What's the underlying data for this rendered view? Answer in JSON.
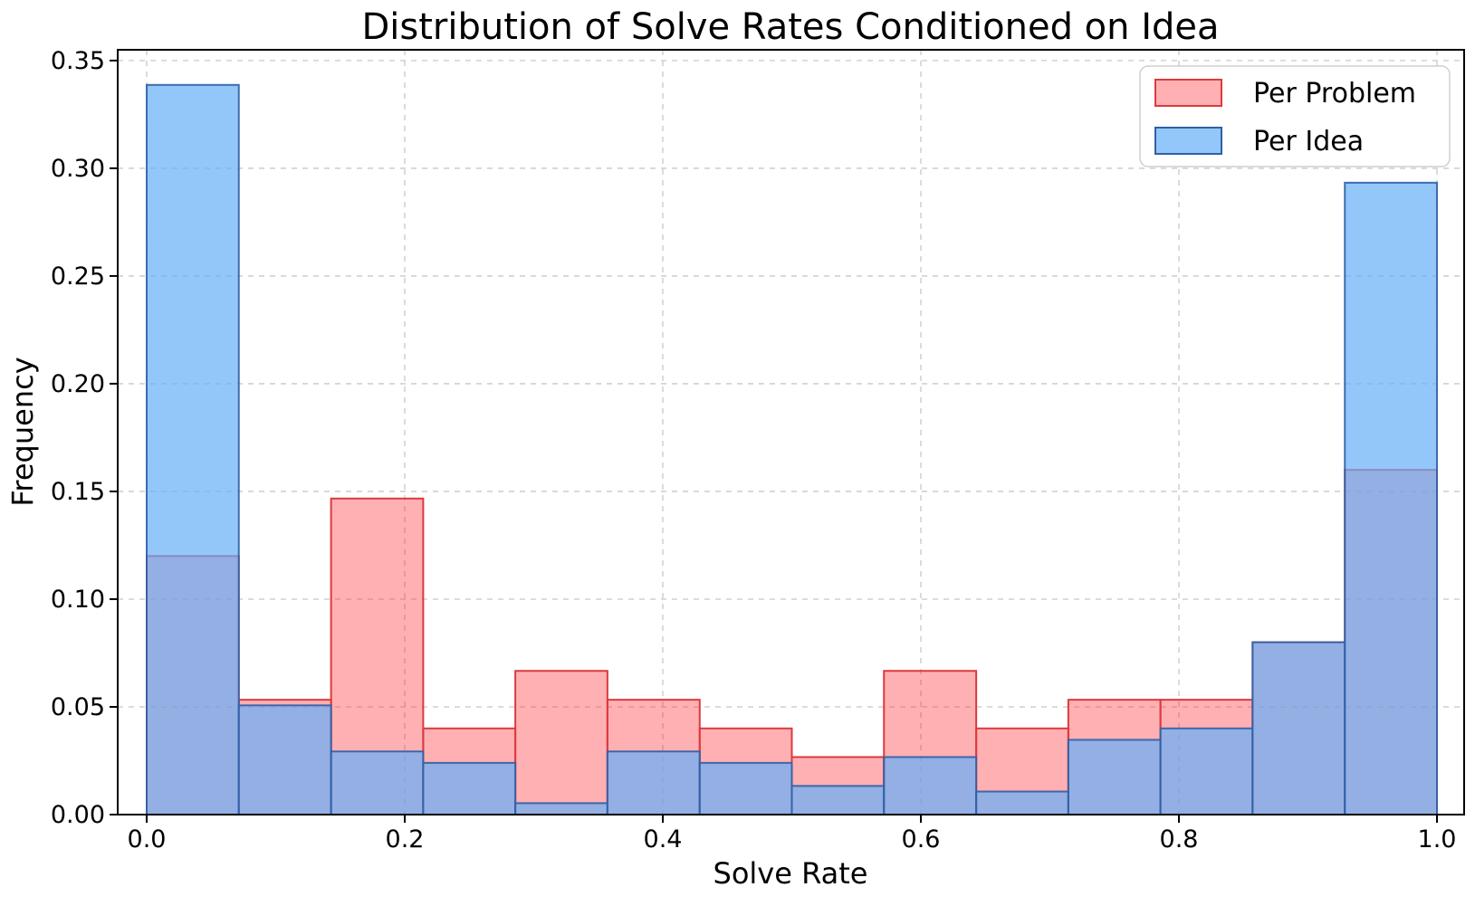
{
  "chart": {
    "title": "Distribution of Solve Rates Conditioned on Idea",
    "xlabel": "Solve Rate",
    "ylabel": "Frequency"
  },
  "chart_data": {
    "type": "bar",
    "subtype": "overlaid-histogram",
    "title": "Distribution of Solve Rates Conditioned on Idea",
    "xlabel": "Solve Rate",
    "ylabel": "Frequency",
    "bin_edges": [
      0.0,
      0.0714,
      0.1429,
      0.2143,
      0.2857,
      0.3571,
      0.4286,
      0.5,
      0.5714,
      0.6429,
      0.7143,
      0.7857,
      0.8571,
      0.9286,
      1.0
    ],
    "series": [
      {
        "name": "Per Problem",
        "values": [
          0.12,
          0.0533,
          0.1467,
          0.04,
          0.0667,
          0.0533,
          0.04,
          0.0267,
          0.0667,
          0.04,
          0.0533,
          0.0533,
          0.08,
          0.16
        ],
        "fill": "rgb(255,30,35)",
        "fill_opacity": 0.35,
        "edge": "#dc3a3e",
        "legend_fill": "#ffb0b2"
      },
      {
        "name": "Per Idea",
        "values": [
          0.3387,
          0.0507,
          0.0293,
          0.024,
          0.0053,
          0.0293,
          0.024,
          0.0133,
          0.0267,
          0.0107,
          0.0347,
          0.04,
          0.08,
          0.2933
        ],
        "fill": "rgb(101,175,248)",
        "fill_opacity": 0.7,
        "edge": "#2f5fa6",
        "edge_opacity": 0.9,
        "legend_fill": "#93c7fa"
      }
    ],
    "x_ticks": {
      "values": [
        0.0,
        0.2,
        0.4,
        0.6,
        0.8,
        1.0
      ],
      "labels": [
        "0.0",
        "0.2",
        "0.4",
        "0.6",
        "0.8",
        "1.0"
      ]
    },
    "y_ticks": {
      "values": [
        0.0,
        0.05,
        0.1,
        0.15,
        0.2,
        0.25,
        0.3,
        0.35
      ],
      "labels": [
        "0.00",
        "0.05",
        "0.10",
        "0.15",
        "0.20",
        "0.25",
        "0.30",
        "0.35"
      ]
    },
    "xlim": [
      -0.0225,
      1.0214
    ],
    "ylim": [
      0,
      0.355
    ],
    "grid": {
      "on": true,
      "style": "dashed",
      "color": "#c8c8c8"
    },
    "legend": {
      "position": "upper right",
      "entries": [
        "Per Problem",
        "Per Idea"
      ]
    }
  }
}
